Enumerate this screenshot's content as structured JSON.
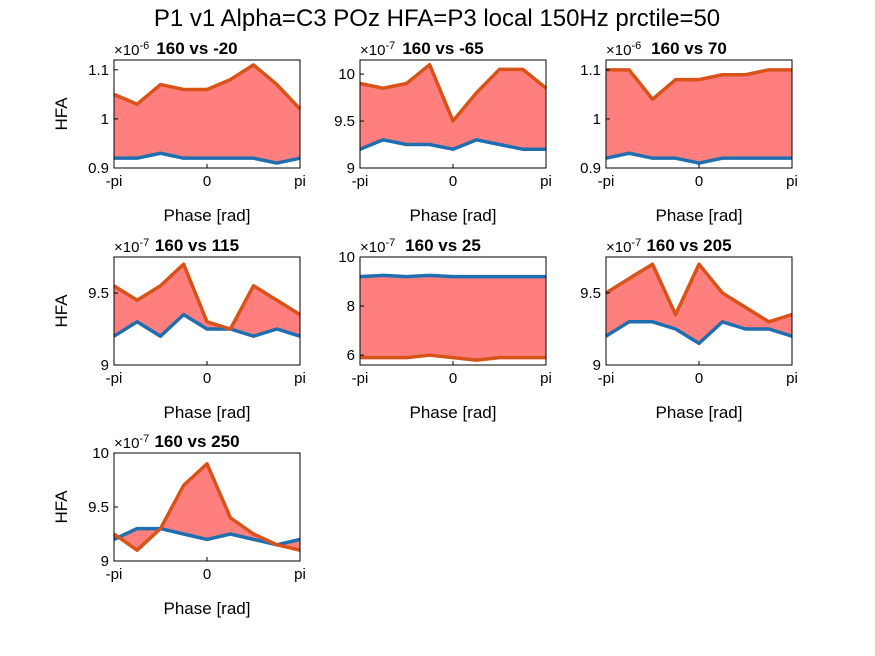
{
  "figure": {
    "suptitle": "P1 v1 Alpha=C3 POz HFA=P3 local 150Hz prctile=50",
    "colors": {
      "blue": "#1f6fb0",
      "orange": "#d95319",
      "fill": "#ff7f7f",
      "axis": "#000000"
    }
  },
  "chart_data": [
    {
      "type": "line",
      "title": "160 vs -20",
      "multiplier": "×10-6",
      "xlabel": "Phase [rad]",
      "ylabel": "HFA",
      "xticks": [
        "-pi",
        "0",
        "pi"
      ],
      "yticks": [
        0.9,
        1,
        1.1
      ],
      "ytick_labels": [
        "0.9",
        "1",
        "1.1"
      ],
      "ylim": [
        0.9,
        1.12
      ],
      "x": [
        -3.14,
        -2.36,
        -1.57,
        -0.79,
        0,
        0.79,
        1.57,
        2.36,
        3.14
      ],
      "series": [
        {
          "values": [
            0.92,
            0.92,
            0.93,
            0.92,
            0.92,
            0.92,
            0.92,
            0.91,
            0.92
          ]
        },
        {
          "values": [
            1.05,
            1.03,
            1.07,
            1.06,
            1.06,
            1.08,
            1.11,
            1.07,
            1.02
          ]
        }
      ]
    },
    {
      "type": "line",
      "title": "160 vs -65",
      "multiplier": "×10-7",
      "xlabel": "Phase [rad]",
      "ylabel": "",
      "xticks": [
        "-pi",
        "0",
        "pi"
      ],
      "yticks": [
        9,
        9.5,
        10
      ],
      "ytick_labels": [
        "9",
        "9.5",
        "10"
      ],
      "ylim": [
        9.0,
        10.15
      ],
      "x": [
        -3.14,
        -2.36,
        -1.57,
        -0.79,
        0,
        0.79,
        1.57,
        2.36,
        3.14
      ],
      "series": [
        {
          "values": [
            9.2,
            9.3,
            9.25,
            9.25,
            9.2,
            9.3,
            9.25,
            9.2,
            9.2
          ]
        },
        {
          "values": [
            9.9,
            9.85,
            9.9,
            10.1,
            9.5,
            9.8,
            10.05,
            10.05,
            9.85
          ]
        }
      ]
    },
    {
      "type": "line",
      "title": "160 vs 70",
      "multiplier": "×10-6",
      "xlabel": "Phase [rad]",
      "ylabel": "",
      "xticks": [
        "-pi",
        "0",
        "pi"
      ],
      "yticks": [
        0.9,
        1,
        1.1
      ],
      "ytick_labels": [
        "0.9",
        "1",
        "1.1"
      ],
      "ylim": [
        0.9,
        1.12
      ],
      "x": [
        -3.14,
        -2.36,
        -1.57,
        -0.79,
        0,
        0.79,
        1.57,
        2.36,
        3.14
      ],
      "series": [
        {
          "values": [
            0.92,
            0.93,
            0.92,
            0.92,
            0.91,
            0.92,
            0.92,
            0.92,
            0.92
          ]
        },
        {
          "values": [
            1.1,
            1.1,
            1.04,
            1.08,
            1.08,
            1.09,
            1.09,
            1.1,
            1.1
          ]
        }
      ]
    },
    {
      "type": "line",
      "title": "160 vs 115",
      "multiplier": "×10-7",
      "xlabel": "Phase [rad]",
      "ylabel": "HFA",
      "xticks": [
        "-pi",
        "0",
        "pi"
      ],
      "yticks": [
        9,
        9.5
      ],
      "ytick_labels": [
        "9",
        "9.5"
      ],
      "ylim": [
        9.0,
        9.75
      ],
      "x": [
        -3.14,
        -2.36,
        -1.57,
        -0.79,
        0,
        0.79,
        1.57,
        2.36,
        3.14
      ],
      "series": [
        {
          "values": [
            9.2,
            9.3,
            9.2,
            9.35,
            9.25,
            9.25,
            9.2,
            9.25,
            9.2
          ]
        },
        {
          "values": [
            9.55,
            9.45,
            9.55,
            9.7,
            9.3,
            9.25,
            9.55,
            9.45,
            9.35
          ]
        }
      ]
    },
    {
      "type": "line",
      "title": "160 vs 25",
      "multiplier": "×10-7",
      "xlabel": "Phase [rad]",
      "ylabel": "",
      "xticks": [
        "-pi",
        "0",
        "pi"
      ],
      "yticks": [
        6,
        8,
        10
      ],
      "ytick_labels": [
        "6",
        "8",
        "10"
      ],
      "ylim": [
        5.6,
        10.0
      ],
      "x": [
        -3.14,
        -2.36,
        -1.57,
        -0.79,
        0,
        0.79,
        1.57,
        2.36,
        3.14
      ],
      "series": [
        {
          "values": [
            9.2,
            9.25,
            9.2,
            9.25,
            9.2,
            9.2,
            9.2,
            9.2,
            9.2
          ]
        },
        {
          "values": [
            5.9,
            5.9,
            5.9,
            6.0,
            5.9,
            5.8,
            5.9,
            5.9,
            5.9
          ]
        }
      ]
    },
    {
      "type": "line",
      "title": "160 vs 205",
      "multiplier": "×10-7",
      "xlabel": "Phase [rad]",
      "ylabel": "",
      "xticks": [
        "-pi",
        "0",
        "pi"
      ],
      "yticks": [
        9,
        9.5
      ],
      "ytick_labels": [
        "9",
        "9.5"
      ],
      "ylim": [
        9.0,
        9.75
      ],
      "x": [
        -3.14,
        -2.36,
        -1.57,
        -0.79,
        0,
        0.79,
        1.57,
        2.36,
        3.14
      ],
      "series": [
        {
          "values": [
            9.2,
            9.3,
            9.3,
            9.25,
            9.15,
            9.3,
            9.25,
            9.25,
            9.2
          ]
        },
        {
          "values": [
            9.5,
            9.6,
            9.7,
            9.35,
            9.7,
            9.5,
            9.4,
            9.3,
            9.35
          ]
        }
      ]
    },
    {
      "type": "line",
      "title": "160 vs 250",
      "multiplier": "×10-7",
      "xlabel": "Phase [rad]",
      "ylabel": "HFA",
      "xticks": [
        "-pi",
        "0",
        "pi"
      ],
      "yticks": [
        9,
        9.5,
        10
      ],
      "ytick_labels": [
        "9",
        "9.5",
        "10"
      ],
      "ylim": [
        9.0,
        10.0
      ],
      "x": [
        -3.14,
        -2.36,
        -1.57,
        -0.79,
        0,
        0.79,
        1.57,
        2.36,
        3.14
      ],
      "series": [
        {
          "values": [
            9.2,
            9.3,
            9.3,
            9.25,
            9.2,
            9.25,
            9.2,
            9.15,
            9.2
          ]
        },
        {
          "values": [
            9.25,
            9.1,
            9.3,
            9.7,
            9.9,
            9.4,
            9.25,
            9.15,
            9.1
          ]
        }
      ]
    }
  ]
}
